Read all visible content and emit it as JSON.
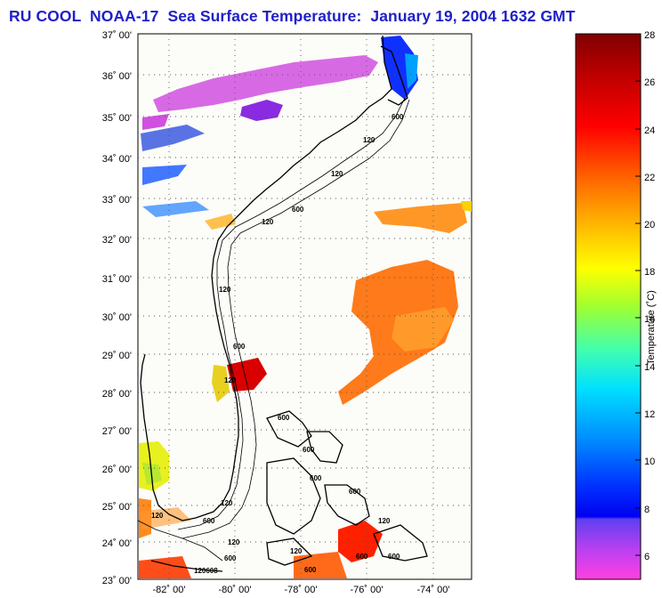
{
  "title": "RU COOL  NOAA-17  Sea Surface Temperature:  January 19, 2004 1632 GMT",
  "map": {
    "lon_range": [
      -83,
      -72.5
    ],
    "lat_range": [
      23,
      37
    ],
    "lon_ticks": [
      "-82˚ 00'",
      "-80˚ 00'",
      "-78˚ 00'",
      "-76˚ 00'",
      "-74˚ 00'"
    ],
    "lat_ticks": [
      "37˚ 00'",
      "36˚ 00'",
      "35˚ 00'",
      "34˚ 00'",
      "33˚ 00'",
      "32˚ 00'",
      "31˚ 00'",
      "30˚ 00'",
      "29˚ 00'",
      "28˚ 00'",
      "27˚ 00'",
      "26˚ 00'",
      "25˚ 00'",
      "24˚ 00'",
      "23˚ 00'"
    ],
    "grid": "dotted",
    "isobath_labels": [
      "600",
      "120",
      "600",
      "120",
      "120",
      "600",
      "120",
      "600",
      "120",
      "600",
      "600",
      "600",
      "600",
      "120",
      "600",
      "120",
      "120",
      "120",
      "600",
      "600",
      "120",
      "120608",
      "600"
    ]
  },
  "colorbar": {
    "label": "Temperature (˚C)",
    "min": 5,
    "max": 28,
    "ticks": [
      "28",
      "26",
      "24",
      "22",
      "20",
      "18",
      "16",
      "14",
      "12",
      "10",
      "8",
      "6"
    ],
    "colors": [
      "#8b0000",
      "#ff0000",
      "#ff8000",
      "#ffff00",
      "#80ff00",
      "#00ffff",
      "#0080ff",
      "#0000ff",
      "#8000ff",
      "#ff00ff"
    ]
  }
}
